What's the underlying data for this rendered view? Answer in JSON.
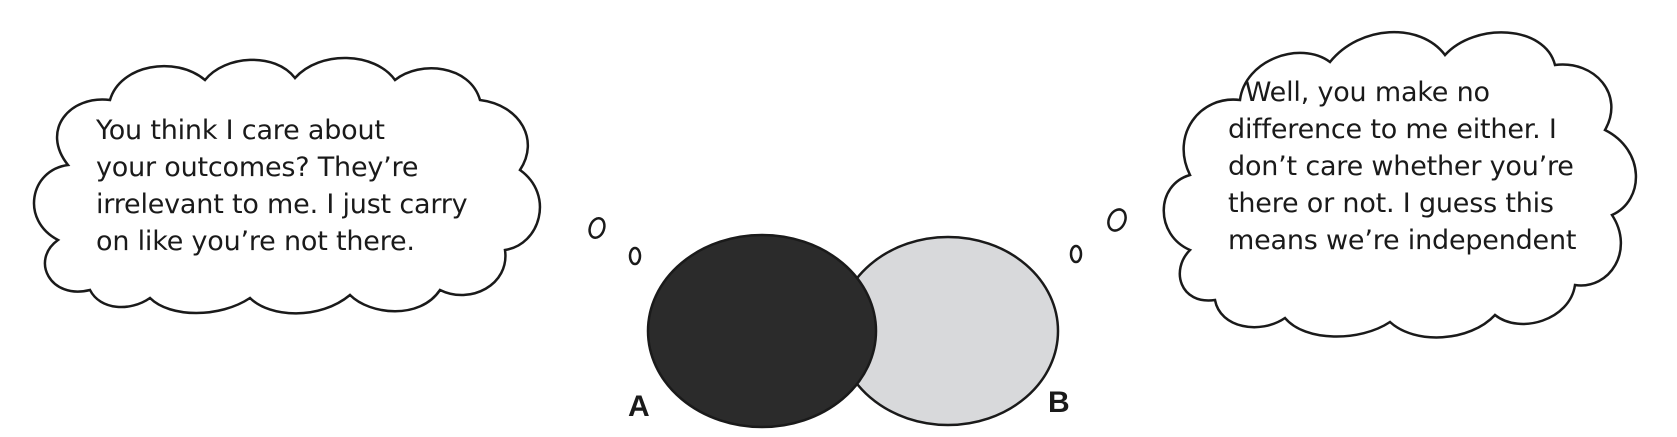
{
  "diagram": {
    "bubble_a": {
      "lines": [
        "You think I care about",
        "your outcomes? They’re",
        "irrelevant to me. I just carry",
        "on like you’re not there."
      ]
    },
    "bubble_b": {
      "lines": [
        "  Well, you make no",
        "difference to me either. I",
        "don’t care whether you’re",
        "there or not. I guess this",
        "means we’re independent"
      ]
    },
    "set_a": {
      "label": "A",
      "color": "#2b2b2b"
    },
    "set_b": {
      "label": "B",
      "color": "#d8d9db"
    }
  }
}
